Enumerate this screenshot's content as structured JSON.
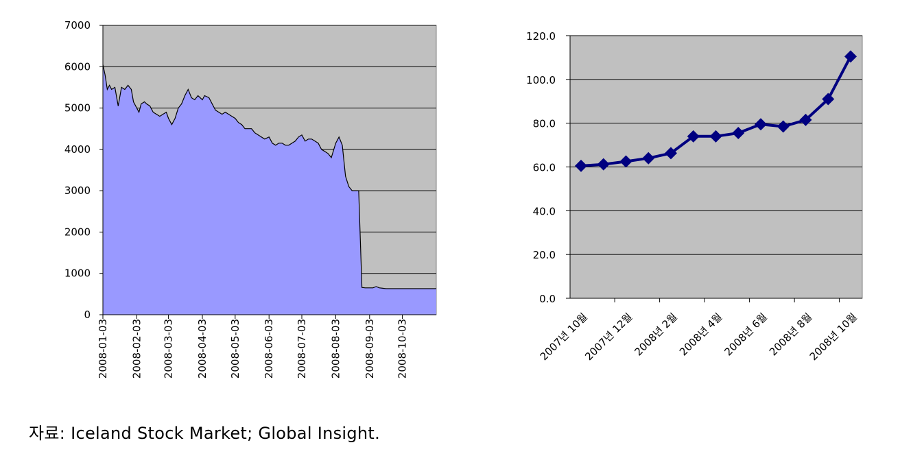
{
  "chart_data": [
    {
      "type": "area",
      "ylim": [
        0,
        7000
      ],
      "yticks": [
        "0",
        "1000",
        "2000",
        "3000",
        "4000",
        "5000",
        "6000",
        "7000"
      ],
      "xticks": [
        "2008-01-03",
        "2008-02-03",
        "2008-03-03",
        "2008-04-03",
        "2008-05-03",
        "2008-06-03",
        "2008-07-03",
        "2008-08-03",
        "2008-09-03",
        "2008-10-03"
      ],
      "x_range": [
        "2008-01-03",
        "2008-11-03"
      ],
      "grid": true,
      "colors": {
        "fill": "#9999ff",
        "plot_bg": "#c0c0c0",
        "line": "#000000"
      },
      "series": [
        {
          "x": [
            "2008-01-03",
            "2008-01-05",
            "2008-01-07",
            "2008-01-09",
            "2008-01-11",
            "2008-01-14",
            "2008-01-17",
            "2008-01-20",
            "2008-01-23",
            "2008-01-26",
            "2008-01-29",
            "2008-01-31",
            "2008-02-03",
            "2008-02-05",
            "2008-02-07",
            "2008-02-10",
            "2008-02-12",
            "2008-02-15",
            "2008-02-18",
            "2008-02-21",
            "2008-02-24",
            "2008-02-27",
            "2008-03-01",
            "2008-03-03",
            "2008-03-06",
            "2008-03-09",
            "2008-03-12",
            "2008-03-15",
            "2008-03-18",
            "2008-03-21",
            "2008-03-24",
            "2008-03-27",
            "2008-03-30",
            "2008-04-03",
            "2008-04-05",
            "2008-04-09",
            "2008-04-12",
            "2008-04-15",
            "2008-04-18",
            "2008-04-21",
            "2008-04-24",
            "2008-04-27",
            "2008-04-30",
            "2008-05-03",
            "2008-05-06",
            "2008-05-09",
            "2008-05-12",
            "2008-05-15",
            "2008-05-18",
            "2008-05-21",
            "2008-05-24",
            "2008-05-27",
            "2008-05-30",
            "2008-06-03",
            "2008-06-06",
            "2008-06-09",
            "2008-06-12",
            "2008-06-15",
            "2008-06-18",
            "2008-06-21",
            "2008-06-24",
            "2008-06-27",
            "2008-06-30",
            "2008-07-03",
            "2008-07-06",
            "2008-07-09",
            "2008-07-12",
            "2008-07-15",
            "2008-07-18",
            "2008-07-21",
            "2008-07-24",
            "2008-07-27",
            "2008-07-30",
            "2008-08-03",
            "2008-08-06",
            "2008-08-09",
            "2008-08-12",
            "2008-08-15",
            "2008-08-18",
            "2008-08-21",
            "2008-08-24",
            "2008-08-27",
            "2008-08-30",
            "2008-09-03",
            "2008-09-06",
            "2008-09-09",
            "2008-09-12",
            "2008-09-15",
            "2008-09-18",
            "2008-09-21",
            "2008-09-24",
            "2008-09-27",
            "2008-09-30",
            "2008-10-03",
            "2008-10-06",
            "2008-10-08",
            "2008-10-09",
            "2008-10-10",
            "2008-10-14",
            "2008-10-17",
            "2008-10-20",
            "2008-10-23",
            "2008-10-26",
            "2008-10-29",
            "2008-11-01",
            "2008-11-03"
          ],
          "values": [
            6050,
            5800,
            5450,
            5550,
            5450,
            5500,
            5050,
            5500,
            5450,
            5550,
            5450,
            5150,
            5000,
            4900,
            5100,
            5150,
            5100,
            5050,
            4900,
            4850,
            4800,
            4850,
            4900,
            4750,
            4600,
            4750,
            5000,
            5100,
            5300,
            5450,
            5250,
            5200,
            5300,
            5200,
            5300,
            5250,
            5100,
            4950,
            4900,
            4850,
            4900,
            4850,
            4800,
            4750,
            4650,
            4600,
            4500,
            4500,
            4500,
            4400,
            4350,
            4300,
            4250,
            4300,
            4150,
            4100,
            4150,
            4150,
            4100,
            4100,
            4150,
            4200,
            4300,
            4350,
            4200,
            4250,
            4250,
            4200,
            4150,
            4000,
            3950,
            3900,
            3800,
            4150,
            4300,
            4100,
            3350,
            3100,
            3000,
            3000,
            3000,
            660,
            650,
            650,
            650,
            680,
            650,
            640,
            630,
            630,
            630,
            630,
            630,
            630,
            630,
            630,
            630,
            630,
            630,
            630,
            630,
            630,
            630,
            630,
            630,
            630
          ]
        }
      ]
    },
    {
      "type": "line",
      "categories": [
        "2007년 10월",
        "2007년 11월",
        "2007년 12월",
        "2008년 1월",
        "2008년 2월",
        "2008년 3월",
        "2008년 4월",
        "2008년 5월",
        "2008년 6월",
        "2008년 7월",
        "2008년 8월",
        "2008년 9월",
        "2008년 10월"
      ],
      "category_labels_shown": [
        "2007년 10월",
        "2007년 12월",
        "2008년 2월",
        "2008년 4월",
        "2008년 6월",
        "2008년 8월",
        "2008년 10월"
      ],
      "ylim": [
        0,
        120
      ],
      "yticks": [
        "0.0",
        "20.0",
        "40.0",
        "60.0",
        "80.0",
        "100.0",
        "120.0"
      ],
      "grid": true,
      "colors": {
        "line": "#000080",
        "marker": "#000080",
        "plot_bg": "#c0c0c0"
      },
      "series": [
        {
          "values": [
            60.5,
            61.2,
            62.5,
            64.0,
            66.3,
            74.0,
            74.0,
            75.5,
            79.5,
            78.5,
            81.5,
            91.0,
            110.5
          ]
        }
      ]
    }
  ],
  "source_text": "자료: Iceland Stock Market; Global Insight."
}
